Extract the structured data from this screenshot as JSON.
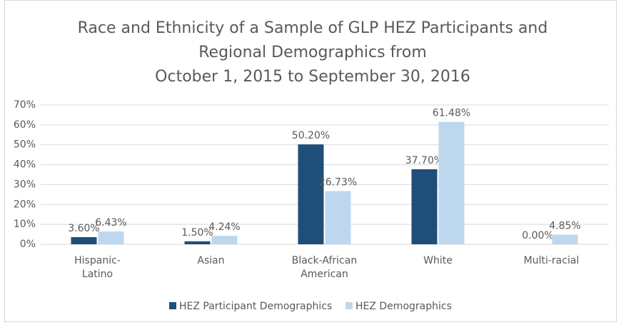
{
  "chart_data": {
    "type": "bar",
    "title": [
      "Race and Ethnicity of a Sample of GLP HEZ Participants and",
      "Regional Demographics from",
      "October 1, 2015 to September 30, 2016"
    ],
    "categories": [
      "Hispanic-Latino",
      "Asian",
      "Black-African American",
      "White",
      "Multi-racial"
    ],
    "series": [
      {
        "name": "HEZ Participant Demographics",
        "color": "#1f4e79",
        "values": [
          3.6,
          1.5,
          50.2,
          37.7,
          0
        ],
        "value_labels": [
          "3.60%",
          "1.50%",
          "50.20%",
          "37.70%",
          "0.00%"
        ]
      },
      {
        "name": "HEZ Demographics",
        "color": "#bdd7ee",
        "values": [
          6.43,
          4.24,
          26.73,
          61.48,
          4.85
        ],
        "value_labels": [
          "6.43%",
          "4.24%",
          "26.73%",
          "61.48%",
          "4.85%"
        ]
      }
    ],
    "ylim": [
      0,
      70
    ],
    "yticks": [
      {
        "value": 0,
        "label": "0%"
      },
      {
        "value": 10,
        "label": "10%"
      },
      {
        "value": 20,
        "label": "20%"
      },
      {
        "value": 30,
        "label": "30%"
      },
      {
        "value": 40,
        "label": "40%"
      },
      {
        "value": 50,
        "label": "50%"
      },
      {
        "value": 60,
        "label": "60%"
      },
      {
        "value": 70,
        "label": "70%"
      }
    ],
    "grid": true,
    "legend": "bottom"
  }
}
